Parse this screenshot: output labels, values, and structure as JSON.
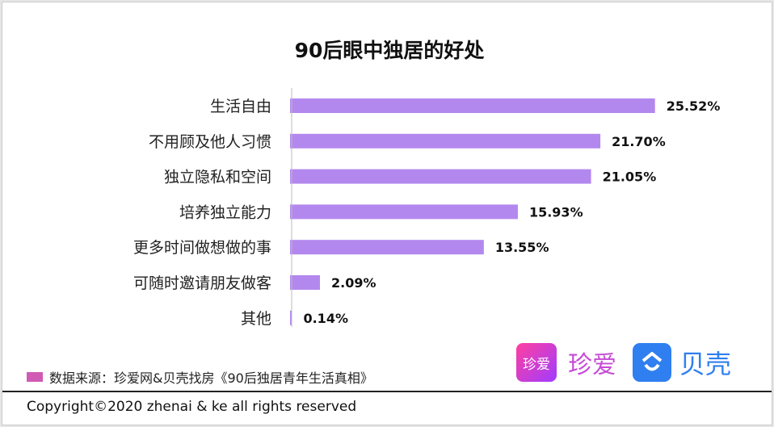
{
  "chart_data": {
    "type": "bar",
    "orientation": "horizontal",
    "title": "90后眼中独居的好处",
    "categories": [
      "生活自由",
      "不用顾及他人习惯",
      "独立隐私和空间",
      "培养独立能力",
      "更多时间做想做的事",
      "可随时邀请朋友做客",
      "其他"
    ],
    "values": [
      25.52,
      21.7,
      21.05,
      15.93,
      13.55,
      2.09,
      0.14
    ],
    "value_labels": [
      "25.52%",
      "21.70%",
      "21.05%",
      "15.93%",
      "13.55%",
      "2.09%",
      "0.14%"
    ],
    "unit": "%",
    "bar_color": "#b388ee",
    "grid": false
  },
  "source": {
    "text": "数据来源：珍爱网&贝壳找房《90后独居青年生活真相》",
    "swatch_color": "#d05ab4"
  },
  "logos": {
    "zhenai_box": "珍爱",
    "zhenai_text": "珍爱",
    "ke_text": "贝壳"
  },
  "footer": {
    "copyright": "Copyright©2020 zhenai & ke all rights reserved"
  }
}
